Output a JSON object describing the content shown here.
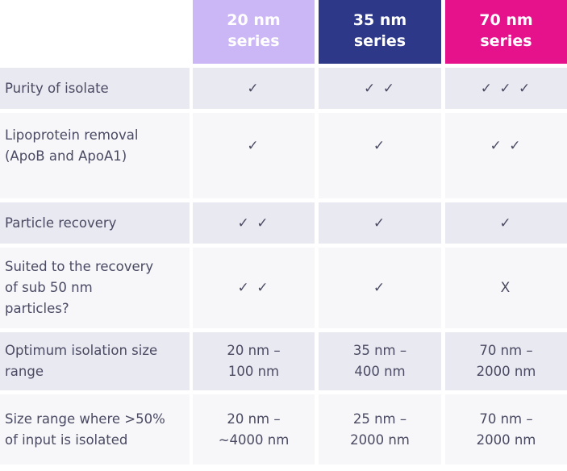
{
  "columns": [
    {
      "label": "20 nm\nseries",
      "color": "#cbb6f6"
    },
    {
      "label": "35 nm\nseries",
      "color": "#2d3889"
    },
    {
      "label": "70 nm\nseries",
      "color": "#e5128c"
    }
  ],
  "rows": [
    {
      "label": "Purity of isolate",
      "values": [
        "✓",
        "✓ ✓",
        "✓ ✓ ✓"
      ]
    },
    {
      "label": "Lipoprotein removal\n(ApoB and ApoA1)",
      "values": [
        "✓",
        "✓",
        "✓ ✓"
      ]
    },
    {
      "label": "Particle recovery",
      "values": [
        "✓ ✓",
        "✓",
        "✓"
      ]
    },
    {
      "label": "Suited to the recovery\nof sub 50 nm\nparticles?",
      "values": [
        "✓ ✓",
        "✓",
        "X"
      ]
    },
    {
      "label": "Optimum isolation size\nrange",
      "values": [
        "20 nm –\n100 nm",
        "35 nm –\n400 nm",
        "70 nm –\n2000 nm"
      ]
    },
    {
      "label": "Size range where >50%\nof input is isolated",
      "values": [
        "20 nm –\n~4000 nm",
        "25 nm –\n2000 nm",
        "70 nm –\n2000 nm"
      ]
    }
  ],
  "colors": {
    "row_shaded": "#e9e9f1",
    "row_plain": "#f7f7fa",
    "text": "#4a4a63"
  }
}
